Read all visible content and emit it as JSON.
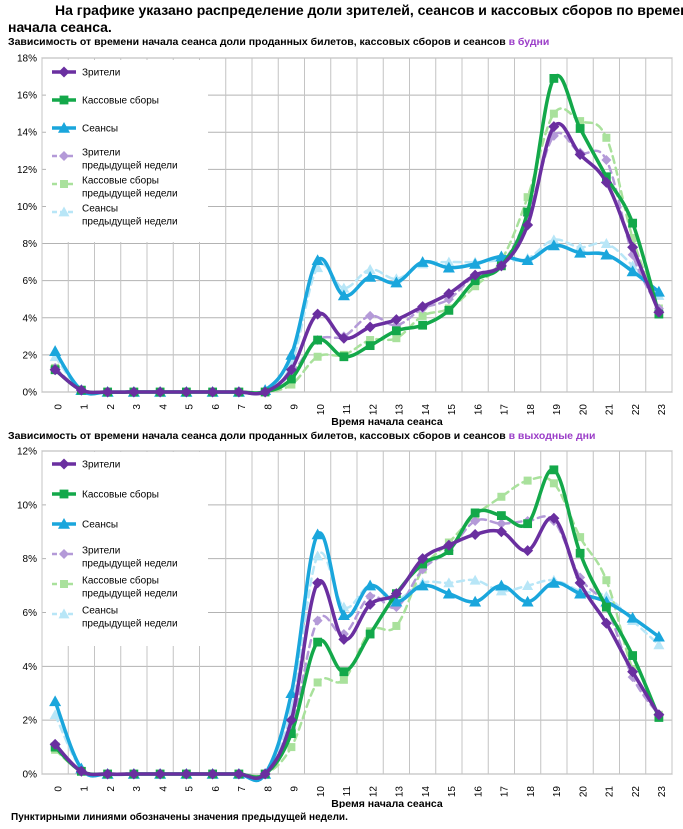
{
  "header": {
    "line1": "На графике указано распределение доли зрителей, сеансов и кассовых сборов по времени",
    "line2": "начала сеанса."
  },
  "footnote": "Пунктирными линиями обозначены значения предыдущей недели.",
  "colors": {
    "viewers": "#6a2fa0",
    "revenue": "#13a84a",
    "sessions": "#1aa6dc",
    "viewers_prev": "#b49ad8",
    "revenue_prev": "#a9e19c",
    "sessions_prev": "#b8e6f7",
    "accent": "#9b3ec8"
  },
  "chart_data": [
    {
      "type": "line",
      "title_main": "Зависимость от времени начала сеанса доли проданных билетов, кассовых сборов и сеансов ",
      "title_accent": "в будни",
      "xlabel": "Время начала сеанса",
      "ylabel": "",
      "ylim": [
        0,
        18
      ],
      "yticks": [
        0,
        2,
        4,
        6,
        8,
        10,
        12,
        14,
        16,
        18
      ],
      "ytick_labels": [
        "0%",
        "2%",
        "4%",
        "6%",
        "8%",
        "10%",
        "12%",
        "14%",
        "16%",
        "18%"
      ],
      "x": [
        "0",
        "1",
        "2",
        "3",
        "4",
        "5",
        "6",
        "7",
        "8",
        "9",
        "10",
        "11",
        "12",
        "13",
        "14",
        "15",
        "16",
        "17",
        "18",
        "19",
        "20",
        "21",
        "22",
        "23"
      ],
      "legend": [
        "Зрители",
        "Кассовые сборы",
        "Сеансы",
        "Зрители предыдущей недели",
        "Кассовые сборы предыдущей недели",
        "Сеансы предыдущей недели"
      ],
      "series": [
        {
          "name": "Зрители",
          "key": "viewers",
          "values": [
            1.2,
            0.1,
            0,
            0,
            0,
            0,
            0,
            0,
            0,
            1.2,
            4.2,
            2.9,
            3.5,
            3.9,
            4.6,
            5.3,
            6.3,
            6.8,
            9.0,
            14.3,
            12.8,
            11.3,
            7.8,
            4.3
          ]
        },
        {
          "name": "Кассовые сборы",
          "key": "revenue",
          "values": [
            1.2,
            0.1,
            0,
            0,
            0,
            0,
            0,
            0,
            0,
            0.7,
            2.8,
            1.9,
            2.5,
            3.3,
            3.6,
            4.4,
            6.0,
            6.8,
            9.7,
            16.9,
            14.2,
            11.6,
            9.1,
            4.2
          ]
        },
        {
          "name": "Сеансы",
          "key": "sessions",
          "values": [
            2.2,
            0.1,
            0,
            0,
            0,
            0,
            0,
            0,
            0.1,
            2.0,
            7.1,
            5.2,
            6.2,
            5.9,
            7.0,
            6.7,
            6.9,
            7.3,
            7.1,
            7.9,
            7.5,
            7.4,
            6.5,
            5.4
          ]
        },
        {
          "name": "Зрители предыдущей недели",
          "key": "viewers_prev",
          "values": [
            1.3,
            0.1,
            0,
            0,
            0,
            0,
            0,
            0,
            0,
            1.0,
            2.8,
            3.0,
            4.1,
            3.6,
            4.5,
            5.0,
            6.3,
            6.9,
            9.5,
            13.8,
            12.9,
            12.5,
            7.4,
            4.5
          ]
        },
        {
          "name": "Кассовые сборы предыдущей недели",
          "key": "revenue_prev",
          "values": [
            1.3,
            0.1,
            0,
            0,
            0,
            0,
            0,
            0,
            0,
            0.4,
            1.9,
            2.0,
            2.8,
            2.9,
            4.1,
            4.5,
            5.7,
            7.1,
            10.5,
            15.0,
            14.6,
            13.7,
            8.3,
            4.5
          ]
        },
        {
          "name": "Сеансы предыдущей недели",
          "key": "sessions_prev",
          "values": [
            1.9,
            0.1,
            0,
            0,
            0,
            0,
            0,
            0,
            0.1,
            1.5,
            6.7,
            5.6,
            6.6,
            6.1,
            6.9,
            7.0,
            7.0,
            7.1,
            7.2,
            8.2,
            7.8,
            8.0,
            6.8,
            5.2
          ]
        }
      ]
    },
    {
      "type": "line",
      "title_main": "Зависимость от времени начала сеанса доли проданных билетов, кассовых сборов и сеансов ",
      "title_accent": "в выходные дни",
      "xlabel": "Время начала сеанса",
      "ylabel": "",
      "ylim": [
        0,
        12
      ],
      "yticks": [
        0,
        2,
        4,
        6,
        8,
        10,
        12
      ],
      "ytick_labels": [
        "0%",
        "2%",
        "4%",
        "6%",
        "8%",
        "10%",
        "12%"
      ],
      "x": [
        "0",
        "1",
        "2",
        "3",
        "4",
        "5",
        "6",
        "7",
        "8",
        "9",
        "10",
        "11",
        "12",
        "13",
        "14",
        "15",
        "16",
        "17",
        "18",
        "19",
        "20",
        "21",
        "22",
        "23"
      ],
      "legend": [
        "Зрители",
        "Кассовые сборы",
        "Сеансы",
        "Зрители предыдущей недели",
        "Кассовые сборы предыдущей недели",
        "Сеансы предыдущей недели"
      ],
      "series": [
        {
          "name": "Зрители",
          "key": "viewers",
          "values": [
            1.1,
            0.1,
            0,
            0,
            0,
            0,
            0,
            0,
            0,
            2.0,
            7.1,
            5.0,
            6.3,
            6.7,
            8.0,
            8.5,
            8.9,
            9.0,
            8.3,
            9.5,
            7.1,
            5.6,
            3.8,
            2.2
          ]
        },
        {
          "name": "Кассовые сборы",
          "key": "revenue",
          "values": [
            1.0,
            0.1,
            0,
            0,
            0,
            0,
            0,
            0,
            0,
            1.5,
            4.9,
            3.8,
            5.2,
            6.7,
            7.8,
            8.3,
            9.7,
            9.6,
            9.3,
            11.3,
            8.2,
            6.2,
            4.4,
            2.1
          ]
        },
        {
          "name": "Сеансы",
          "key": "sessions",
          "values": [
            2.7,
            0.2,
            0,
            0,
            0,
            0,
            0,
            0,
            0,
            3.0,
            8.9,
            5.9,
            7.0,
            6.4,
            7.0,
            6.7,
            6.4,
            7.0,
            6.4,
            7.1,
            6.7,
            6.4,
            5.8,
            5.1
          ]
        },
        {
          "name": "Зрители предыдущей недели",
          "key": "viewers_prev",
          "values": [
            1.1,
            0.1,
            0,
            0,
            0,
            0,
            0,
            0,
            0,
            1.7,
            5.7,
            5.2,
            6.6,
            6.2,
            7.6,
            8.3,
            9.4,
            9.3,
            9.4,
            9.4,
            7.3,
            6.2,
            3.6,
            2.2
          ]
        },
        {
          "name": "Кассовые сборы предыдущей недели",
          "key": "revenue_prev",
          "values": [
            0.9,
            0.1,
            0,
            0,
            0,
            0,
            0,
            0,
            0,
            1.0,
            3.4,
            3.5,
            5.3,
            5.5,
            7.6,
            8.6,
            9.6,
            10.3,
            10.9,
            10.8,
            8.8,
            7.2,
            3.9,
            2.2
          ]
        },
        {
          "name": "Сеансы предыдущей недели",
          "key": "sessions_prev",
          "values": [
            2.2,
            0.2,
            0,
            0,
            0,
            0,
            0,
            0,
            0,
            2.4,
            8.1,
            6.2,
            7.0,
            6.5,
            7.1,
            7.1,
            7.2,
            6.8,
            7.0,
            7.2,
            6.8,
            6.6,
            5.7,
            4.8
          ]
        }
      ]
    }
  ]
}
